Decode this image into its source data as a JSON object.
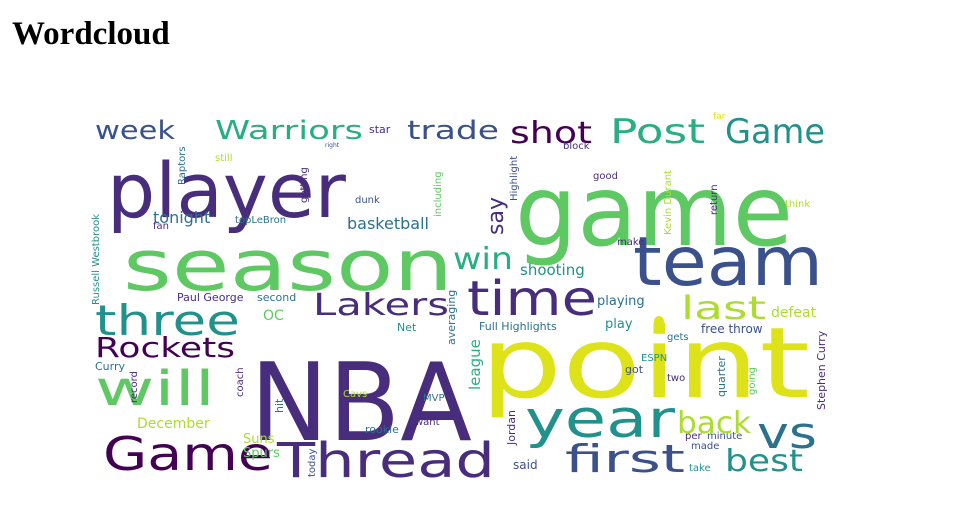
{
  "page": {
    "title": "Wordcloud"
  },
  "palette": {
    "deep_purple": "#440154",
    "purple": "#472d7b",
    "indigo": "#3b518b",
    "blue": "#2c718e",
    "teal": "#21918c",
    "green_teal": "#28ae80",
    "green": "#5ec962",
    "light_green": "#addc30",
    "yellow": "#dde318"
  },
  "wordcloud": {
    "words": [
      {
        "text": "player"
      },
      {
        "text": "game"
      },
      {
        "text": "NBA"
      },
      {
        "text": "point"
      },
      {
        "text": "season"
      },
      {
        "text": "team"
      },
      {
        "text": "time"
      },
      {
        "text": "year"
      },
      {
        "text": "Thread"
      },
      {
        "text": "Game"
      },
      {
        "text": "three"
      },
      {
        "text": "will"
      },
      {
        "text": "Lakers"
      },
      {
        "text": "vs"
      },
      {
        "text": "first"
      },
      {
        "text": "Post"
      },
      {
        "text": "Game"
      },
      {
        "text": "Rockets"
      },
      {
        "text": "last"
      },
      {
        "text": "back"
      },
      {
        "text": "best"
      },
      {
        "text": "Warriors"
      },
      {
        "text": "trade"
      },
      {
        "text": "shot"
      },
      {
        "text": "week"
      },
      {
        "text": "win"
      },
      {
        "text": "say"
      },
      {
        "text": "tonight"
      },
      {
        "text": "basketball"
      },
      {
        "text": "shooting"
      },
      {
        "text": "playing"
      },
      {
        "text": "league"
      },
      {
        "text": "Paul George"
      },
      {
        "text": "second"
      },
      {
        "text": "OC"
      },
      {
        "text": "defeat"
      },
      {
        "text": "Full Highlights"
      },
      {
        "text": "free throw"
      },
      {
        "text": "play"
      },
      {
        "text": "Net"
      },
      {
        "text": "averaging"
      },
      {
        "text": "December"
      },
      {
        "text": "Suns"
      },
      {
        "text": "Spurs"
      },
      {
        "text": "rookie"
      },
      {
        "text": "want"
      },
      {
        "text": "MVP"
      },
      {
        "text": "Cavs"
      },
      {
        "text": "said"
      },
      {
        "text": "Jordan"
      },
      {
        "text": "made"
      },
      {
        "text": "take"
      },
      {
        "text": "per"
      },
      {
        "text": "minute"
      },
      {
        "text": "quarter"
      },
      {
        "text": "going"
      },
      {
        "text": "Stephen Curry"
      },
      {
        "text": "Curry"
      },
      {
        "text": "record"
      },
      {
        "text": "coach"
      },
      {
        "text": "hit"
      },
      {
        "text": "today"
      },
      {
        "text": "gets"
      },
      {
        "text": "ESPN"
      },
      {
        "text": "two"
      },
      {
        "text": "got"
      },
      {
        "text": "Kevin Durant"
      },
      {
        "text": "return"
      },
      {
        "text": "think"
      },
      {
        "text": "block"
      },
      {
        "text": "good"
      },
      {
        "text": "make"
      },
      {
        "text": "topLeBron"
      },
      {
        "text": "getting"
      },
      {
        "text": "dunk"
      },
      {
        "text": "including"
      },
      {
        "text": "Highlight"
      },
      {
        "text": "fan"
      },
      {
        "text": "star"
      },
      {
        "text": "Raptors"
      },
      {
        "text": "still"
      },
      {
        "text": "Russell Westbrook"
      },
      {
        "text": "far"
      },
      {
        "text": "right"
      }
    ]
  }
}
